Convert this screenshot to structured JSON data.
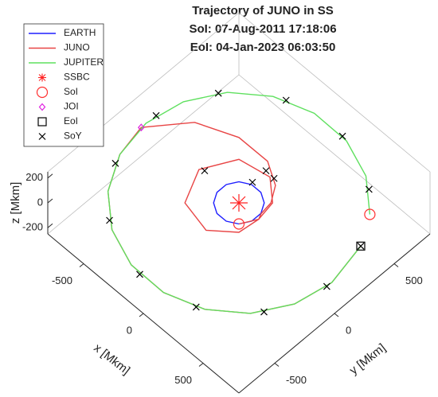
{
  "chart_data": {
    "type": "line3d",
    "title": "Trajectory of JUNO in SS",
    "subtitle": [
      "SoI: 07-Aug-2011 17:18:06",
      "EoI: 04-Jan-2023 06:03:50"
    ],
    "xlabel": "x [Mkm]",
    "ylabel": "y [Mkm]",
    "zlabel": "z [Mkm]",
    "xlim": [
      -800,
      800
    ],
    "ylim": [
      -800,
      800
    ],
    "zlim": [
      -250,
      250
    ],
    "xticks": [
      -500,
      0,
      500
    ],
    "yticks": [
      -500,
      0,
      500
    ],
    "zticks": [
      -200,
      0,
      200
    ],
    "legend": "northwest",
    "series": [
      {
        "name": "EARTH",
        "color": "#1f1fff",
        "x": [
          106,
          145,
          145,
          106,
          39,
          -39,
          -106,
          -145,
          -145,
          -106,
          -39,
          39,
          106
        ],
        "y": [
          -106,
          -39,
          39,
          106,
          145,
          145,
          106,
          39,
          -39,
          -106,
          -145,
          -145,
          -106
        ],
        "z": [
          0,
          0,
          0,
          0,
          0,
          0,
          0,
          0,
          0,
          0,
          0,
          0,
          0
        ]
      },
      {
        "name": "JUNO",
        "color": "#e84545",
        "x": [
          106,
          165,
          141,
          0,
          -219,
          -335,
          -226,
          0,
          148,
          165,
          147,
          134,
          65,
          -88,
          -325,
          -583,
          -777,
          -731,
          -596,
          -389,
          -135,
          135,
          389,
          596,
          731,
          778,
          716
        ],
        "y": [
          -106,
          0,
          141,
          260,
          219,
          0,
          -226,
          -275,
          -148,
          0,
          39,
          134,
          241,
          328,
          325,
          212,
          -41,
          -266,
          -500,
          -674,
          -766,
          -766,
          -674,
          -500,
          -266,
          0,
          304
        ],
        "z": [
          0,
          0,
          0,
          0,
          0,
          0,
          0,
          0,
          0,
          0,
          0,
          0,
          0,
          2,
          6,
          12,
          18,
          18,
          16,
          12,
          6,
          0,
          -6,
          -12,
          -16,
          -18,
          -18
        ]
      },
      {
        "name": "JUPITER",
        "color": "#5fe05f",
        "x": [
          596,
          389,
          135,
          -135,
          -389,
          -596,
          -731,
          -778,
          -731,
          -596,
          -389,
          -135,
          135,
          389,
          596,
          731,
          778,
          716
        ],
        "y": [
          500,
          674,
          766,
          766,
          674,
          500,
          266,
          0,
          -266,
          -500,
          -674,
          -766,
          -766,
          -674,
          -500,
          -266,
          0,
          304
        ],
        "z": [
          -16,
          -12,
          -6,
          0,
          6,
          12,
          16,
          18,
          18,
          16,
          12,
          6,
          0,
          -6,
          -12,
          -16,
          -18,
          -18
        ]
      }
    ],
    "markers": [
      {
        "name": "SSBC",
        "symbol": "asterisk",
        "color": "#ff2020",
        "x": [
          0
        ],
        "y": [
          0
        ],
        "z": [
          0
        ]
      },
      {
        "name": "SoI",
        "symbol": "circle",
        "color": "#ff3030",
        "x": [
          106,
          596
        ],
        "y": [
          -106,
          500
        ],
        "z": [
          0,
          -16
        ]
      },
      {
        "name": "JOI",
        "symbol": "diamond",
        "color": "#e020e0",
        "x": [
          -777
        ],
        "y": [
          -41
        ],
        "z": [
          18
        ]
      },
      {
        "name": "EoI",
        "symbol": "square",
        "color": "#000000",
        "x": [
          716
        ],
        "y": [
          304
        ],
        "z": [
          -18
        ]
      },
      {
        "name": "SoY",
        "symbol": "cross",
        "color": "#000000",
        "x": [
          -305,
          -48,
          24,
          -47,
          468,
          95,
          -316,
          -629,
          -774,
          -705,
          -446,
          -54,
          341,
          645,
          777,
          716
        ],
        "y": [
          18,
          275,
          270,
          160,
          621,
          772,
          711,
          457,
          81,
          -329,
          -637,
          -776,
          -699,
          -435,
          -41,
          304
        ],
        "z": [
          0,
          0,
          0,
          0,
          -13,
          -5,
          4,
          13,
          18,
          17,
          12,
          3,
          -6,
          -13,
          -18,
          -18
        ]
      }
    ]
  }
}
